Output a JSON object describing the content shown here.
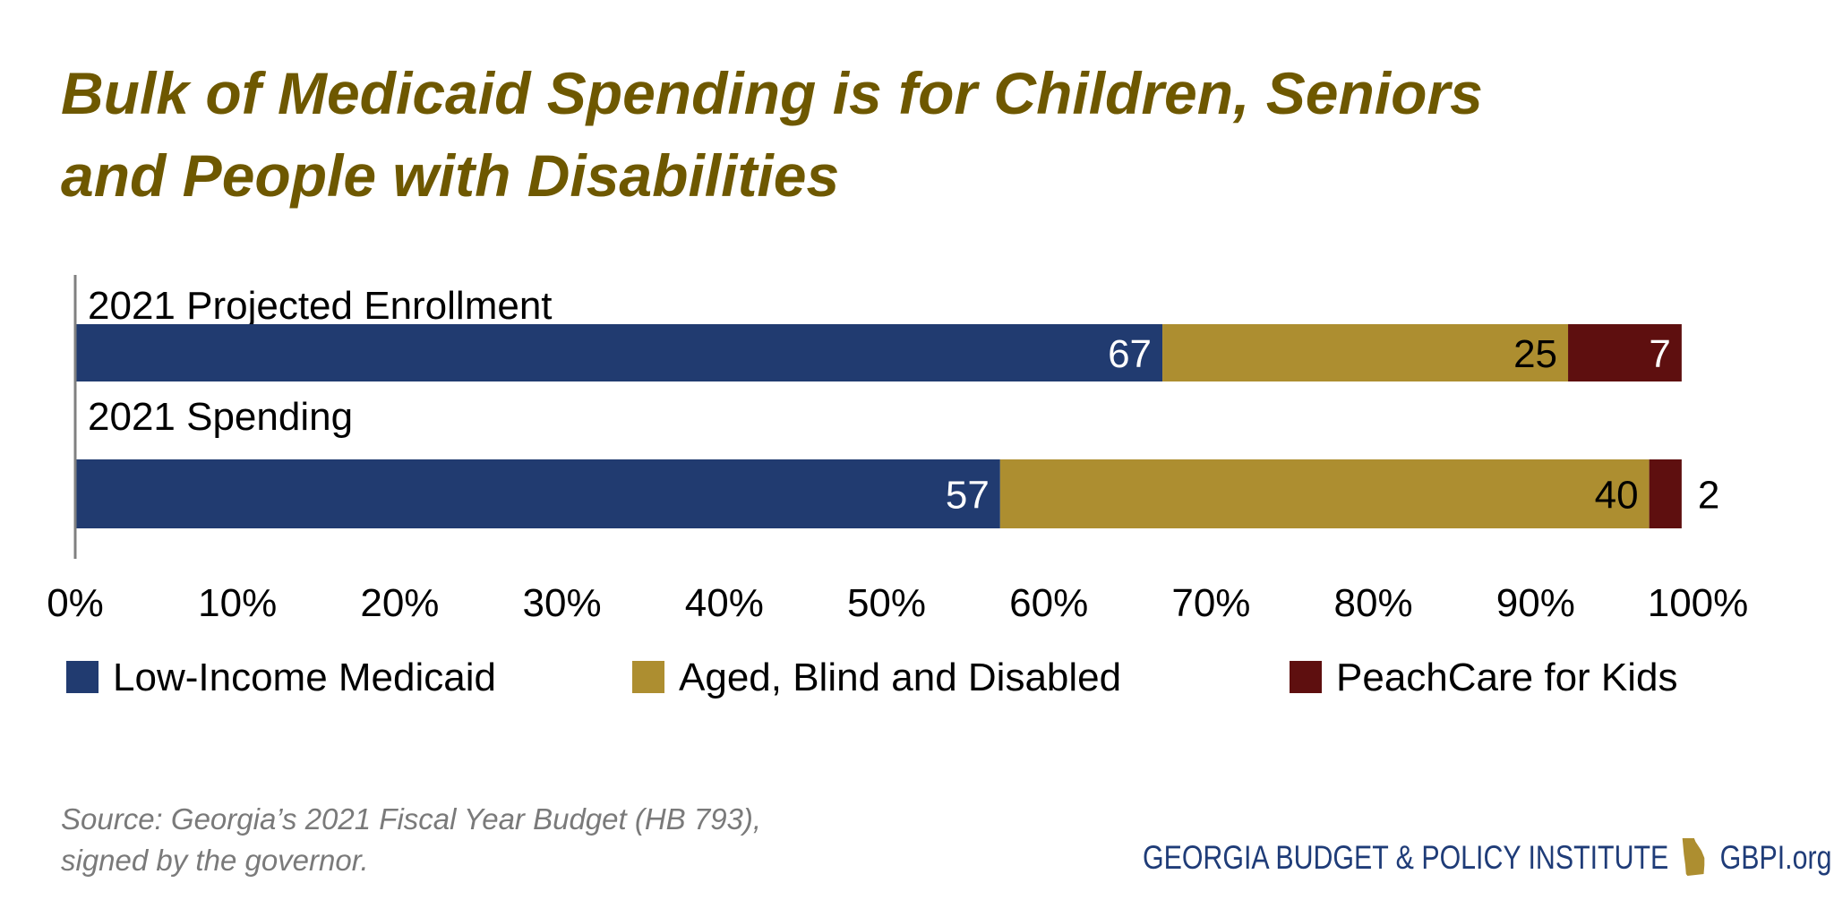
{
  "title_lines": [
    "Bulk of Medicaid Spending is for Children, Seniors",
    "and People with Disabilities"
  ],
  "chart_data": {
    "type": "bar",
    "orientation": "horizontal",
    "stacked": true,
    "categories": [
      "2021 Projected Enrollment",
      "2021 Spending"
    ],
    "series": [
      {
        "name": "Low-Income Medicaid",
        "values": [
          67,
          57
        ],
        "color": "#213b70",
        "label_color": "#ffffff"
      },
      {
        "name": "Aged, Blind and Disabled",
        "values": [
          25,
          40
        ],
        "color": "#ad8e30",
        "label_color": "#000000"
      },
      {
        "name": "PeachCare for Kids",
        "values": [
          7,
          2
        ],
        "color": "#5e0f0f",
        "label_color": "#ffffff"
      }
    ],
    "xlim": [
      0,
      100
    ],
    "xticks": [
      "0%",
      "10%",
      "20%",
      "30%",
      "40%",
      "50%",
      "60%",
      "70%",
      "80%",
      "90%",
      "100%"
    ],
    "grid": false,
    "legend_position": "bottom"
  },
  "source_lines": [
    "Source: Georgia’s 2021 Fiscal Year Budget (HB 793),",
    "signed by the governor."
  ],
  "logo": {
    "name": "GEORGIA BUDGET & POLICY INSTITUTE",
    "url_text": "GBPI.org",
    "color": "#1f3c78",
    "state_color": "#ad8e30"
  }
}
